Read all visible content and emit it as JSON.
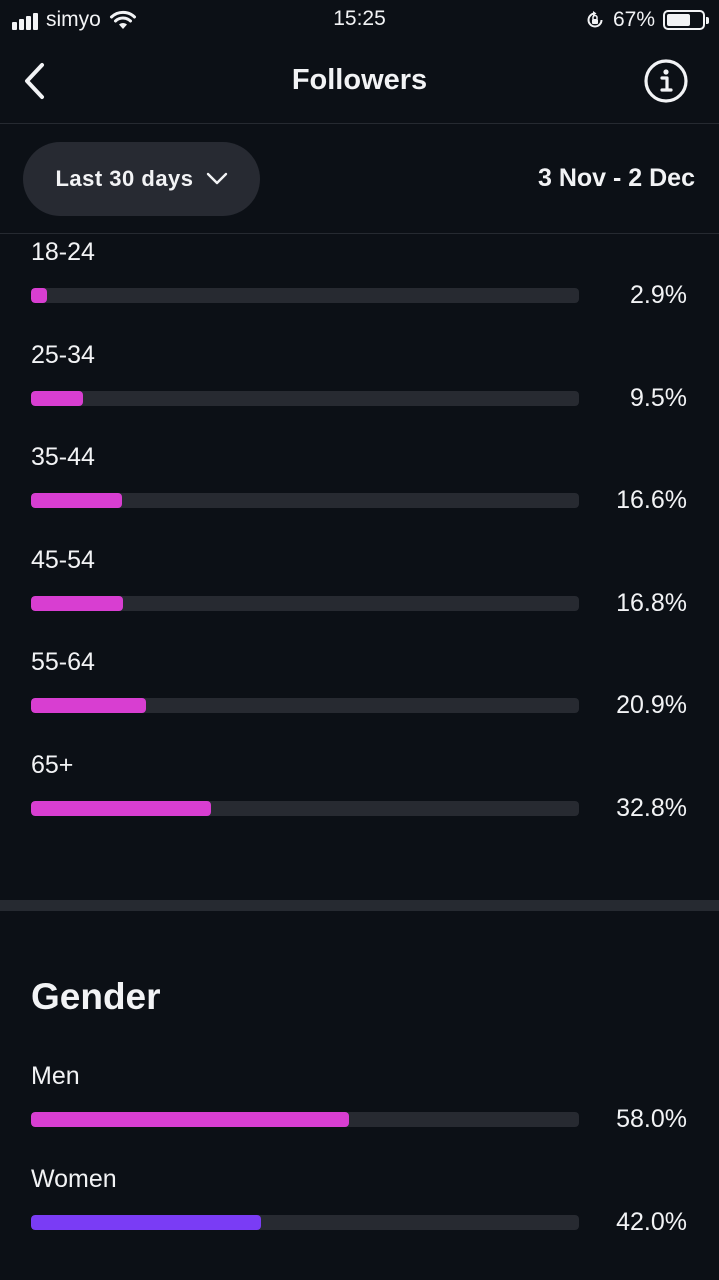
{
  "status_bar": {
    "carrier": "simyo",
    "time": "15:25",
    "battery": "67%",
    "battery_level": 0.67
  },
  "header": {
    "title": "Followers"
  },
  "filter": {
    "range_label": "Last 30 days",
    "date_range": "3 Nov - 2 Dec"
  },
  "age_ranges": [
    {
      "label": "18-24",
      "percent_text": "2.9%",
      "value": 2.9
    },
    {
      "label": "25-34",
      "percent_text": "9.5%",
      "value": 9.5
    },
    {
      "label": "35-44",
      "percent_text": "16.6%",
      "value": 16.6
    },
    {
      "label": "45-54",
      "percent_text": "16.8%",
      "value": 16.8
    },
    {
      "label": "55-64",
      "percent_text": "20.9%",
      "value": 20.9
    },
    {
      "label": "65+",
      "percent_text": "32.8%",
      "value": 32.8
    }
  ],
  "gender": {
    "title": "Gender",
    "items": [
      {
        "label": "Men",
        "percent_text": "58.0%",
        "value": 58.0
      },
      {
        "label": "Women",
        "percent_text": "42.0%",
        "value": 42.0
      }
    ]
  },
  "colors": {
    "background": "#0c1016",
    "track": "#272a31",
    "accent_pink": "#d83ed1",
    "accent_purple": "#7a3cf5"
  },
  "icons": {
    "back": "chevron-left-icon",
    "info": "info-icon",
    "dropdown": "chevron-down-icon",
    "wifi": "wifi-icon",
    "rotation_lock": "rotation-lock-icon",
    "battery": "battery-icon",
    "signal": "signal-icon"
  }
}
